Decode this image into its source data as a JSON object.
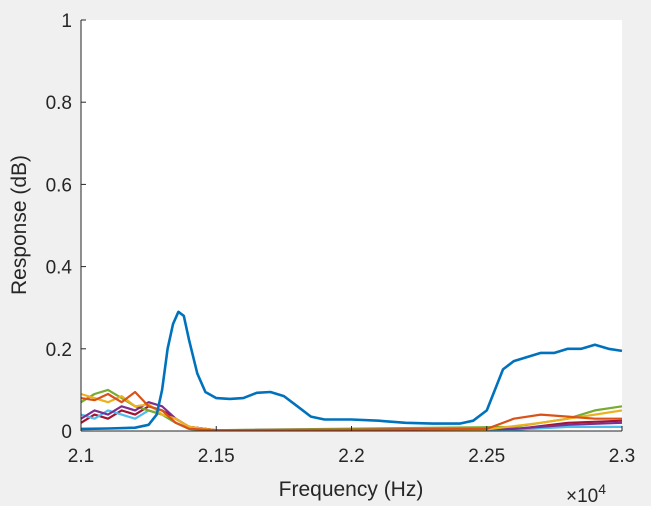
{
  "chart_data": {
    "type": "line",
    "title": "",
    "xlabel": "Frequency (Hz)",
    "ylabel": "Response (dB)",
    "x_exponent_label": "×10",
    "x_exponent_power": "4",
    "xlim": [
      21000,
      23000
    ],
    "ylim": [
      0,
      1
    ],
    "xticks": [
      21000,
      21500,
      22000,
      22500,
      23000
    ],
    "xtick_labels": [
      "2.1",
      "2.15",
      "2.2",
      "2.25",
      "2.3"
    ],
    "yticks": [
      0,
      0.2,
      0.4,
      0.6,
      0.8,
      1
    ],
    "ytick_labels": [
      "0",
      "0.2",
      "0.4",
      "0.6",
      "0.8",
      "1"
    ],
    "grid": false,
    "series": [
      {
        "color": "#0072BD",
        "x": [
          21000,
          21100,
          21200,
          21250,
          21280,
          21300,
          21320,
          21340,
          21360,
          21380,
          21400,
          21430,
          21460,
          21500,
          21550,
          21600,
          21650,
          21700,
          21750,
          21800,
          21850,
          21900,
          21950,
          22000,
          22100,
          22200,
          22300,
          22400,
          22450,
          22500,
          22530,
          22560,
          22600,
          22650,
          22700,
          22750,
          22800,
          22850,
          22900,
          22950,
          23000
        ],
        "y": [
          0.005,
          0.006,
          0.008,
          0.015,
          0.04,
          0.1,
          0.2,
          0.26,
          0.29,
          0.28,
          0.22,
          0.14,
          0.095,
          0.08,
          0.078,
          0.08,
          0.093,
          0.095,
          0.085,
          0.06,
          0.035,
          0.028,
          0.028,
          0.028,
          0.025,
          0.02,
          0.018,
          0.018,
          0.025,
          0.05,
          0.1,
          0.15,
          0.17,
          0.18,
          0.19,
          0.19,
          0.2,
          0.2,
          0.21,
          0.2,
          0.195
        ]
      },
      {
        "color": "#D95319",
        "x": [
          21000,
          21050,
          21100,
          21150,
          21200,
          21250,
          21300,
          21350,
          21400,
          21500,
          22000,
          22500,
          22600,
          22700,
          22800,
          22900,
          23000
        ],
        "y": [
          0.08,
          0.075,
          0.09,
          0.07,
          0.095,
          0.06,
          0.05,
          0.02,
          0.005,
          0.002,
          0.003,
          0.005,
          0.03,
          0.04,
          0.035,
          0.03,
          0.03
        ]
      },
      {
        "color": "#EDB120",
        "x": [
          21000,
          21050,
          21100,
          21150,
          21200,
          21250,
          21300,
          21350,
          21400,
          21500,
          22500,
          22700,
          22800,
          22900,
          23000
        ],
        "y": [
          0.09,
          0.08,
          0.07,
          0.085,
          0.06,
          0.065,
          0.04,
          0.03,
          0.01,
          0.002,
          0.004,
          0.02,
          0.03,
          0.04,
          0.05
        ]
      },
      {
        "color": "#7E2F8E",
        "x": [
          21000,
          21050,
          21100,
          21150,
          21200,
          21250,
          21300,
          21350,
          21400,
          21500,
          22600,
          22800,
          23000
        ],
        "y": [
          0.03,
          0.05,
          0.04,
          0.06,
          0.05,
          0.07,
          0.06,
          0.03,
          0.01,
          0.002,
          0.005,
          0.015,
          0.02
        ]
      },
      {
        "color": "#77AC30",
        "x": [
          21000,
          21050,
          21100,
          21150,
          21200,
          21250,
          21300,
          21350,
          21400,
          21500,
          22600,
          22700,
          22800,
          22900,
          23000
        ],
        "y": [
          0.07,
          0.09,
          0.1,
          0.08,
          0.06,
          0.05,
          0.04,
          0.02,
          0.005,
          0.002,
          0.01,
          0.02,
          0.03,
          0.05,
          0.06
        ]
      },
      {
        "color": "#4DBEEE",
        "x": [
          21000,
          21050,
          21100,
          21150,
          21200,
          21250,
          21300,
          21350,
          21400,
          21500,
          22600,
          22800,
          23000
        ],
        "y": [
          0.04,
          0.03,
          0.05,
          0.04,
          0.03,
          0.05,
          0.04,
          0.02,
          0.005,
          0.002,
          0.003,
          0.01,
          0.01
        ]
      },
      {
        "color": "#A2142F",
        "x": [
          21000,
          21050,
          21100,
          21150,
          21200,
          21250,
          21300,
          21350,
          21400,
          21500,
          22600,
          22800,
          23000
        ],
        "y": [
          0.02,
          0.04,
          0.03,
          0.05,
          0.04,
          0.06,
          0.05,
          0.03,
          0.01,
          0.002,
          0.004,
          0.02,
          0.025
        ]
      }
    ]
  }
}
